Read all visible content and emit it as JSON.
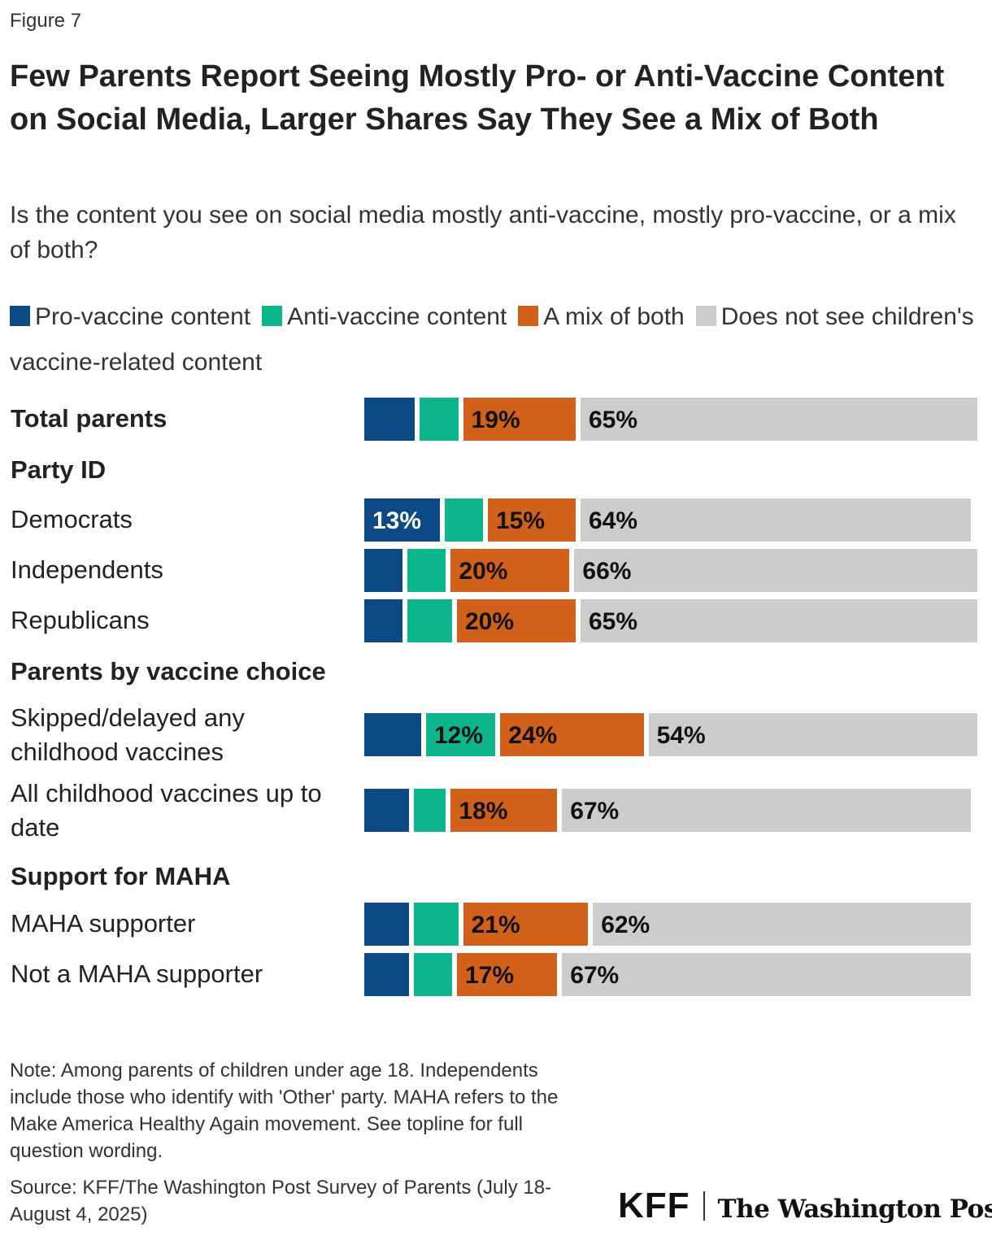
{
  "figure_label": "Figure 7",
  "chart_data": {
    "type": "bar",
    "orientation": "horizontal",
    "stacked": true,
    "title": "Few Parents Report Seeing Mostly Pro- or Anti-Vaccine Content on Social Media, Larger Shares Say They See a Mix of Both",
    "subtitle": "Is the content you see on social media mostly anti-vaccine, mostly pro-vaccine, or a mix of both?",
    "legend_position": "top",
    "series": [
      {
        "name": "Pro-vaccine content",
        "color": "#0b4a87"
      },
      {
        "name": "Anti-vaccine content",
        "color": "#0db58c"
      },
      {
        "name": "A mix of both",
        "color": "#d1611a"
      },
      {
        "name": "Does not see children's vaccine-related content",
        "color": "#cccccc"
      }
    ],
    "rows": [
      {
        "label": "Total parents",
        "kind": "total",
        "values": [
          9,
          7,
          19,
          65
        ]
      },
      {
        "label": "Party ID",
        "kind": "header"
      },
      {
        "label": "Democrats",
        "kind": "row",
        "values": [
          13,
          7,
          15,
          64
        ]
      },
      {
        "label": "Independents",
        "kind": "row",
        "values": [
          7,
          7,
          20,
          66
        ]
      },
      {
        "label": "Republicans",
        "kind": "row",
        "values": [
          7,
          8,
          20,
          65
        ]
      },
      {
        "label": "Parents by vaccine choice",
        "kind": "header"
      },
      {
        "label": "Skipped/delayed any childhood vaccines",
        "kind": "row",
        "values": [
          10,
          12,
          24,
          54
        ]
      },
      {
        "label": "All childhood vaccines up to date",
        "kind": "row",
        "values": [
          8,
          6,
          18,
          67
        ]
      },
      {
        "label": "Support for MAHA",
        "kind": "header"
      },
      {
        "label": "MAHA supporter",
        "kind": "row",
        "values": [
          8,
          8,
          21,
          62
        ]
      },
      {
        "label": "Not a MAHA supporter",
        "kind": "row",
        "values": [
          8,
          7,
          17,
          67
        ]
      }
    ],
    "label_threshold": 12,
    "xlim": [
      0,
      100
    ]
  },
  "note": "Note: Among parents of children under age 18. Independents include those who identify with 'Other' party. MAHA refers to the Make America Healthy Again movement. See topline for full question wording.",
  "source": "Source: KFF/The Washington Post Survey of Parents (July 18-August 4, 2025)",
  "logos": {
    "kff": "KFF",
    "wapo": "The Washington Post"
  }
}
